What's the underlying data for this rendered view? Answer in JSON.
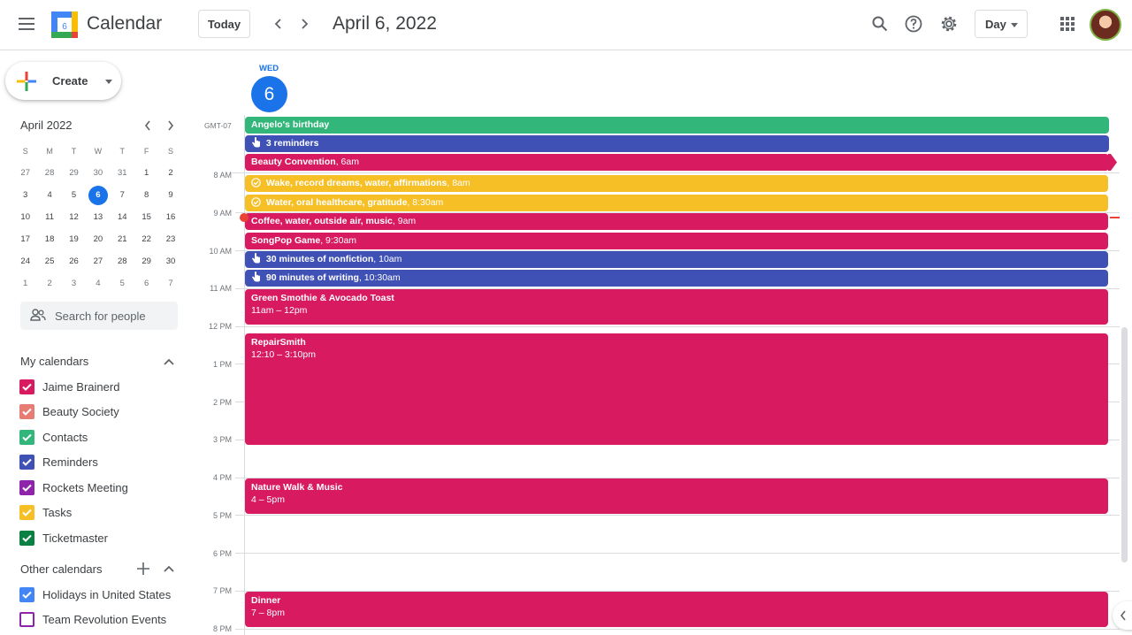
{
  "header": {
    "app_title": "Calendar",
    "logo_day": "6",
    "today_label": "Today",
    "date_title": "April 6, 2022",
    "view_label": "Day"
  },
  "sidebar": {
    "create_label": "Create",
    "mini_month": "April 2022",
    "mini_dow": [
      "S",
      "M",
      "T",
      "W",
      "T",
      "F",
      "S"
    ],
    "mini_weeks": [
      [
        "27",
        "28",
        "29",
        "30",
        "31",
        "1",
        "2"
      ],
      [
        "3",
        "4",
        "5",
        "6",
        "7",
        "8",
        "9"
      ],
      [
        "10",
        "11",
        "12",
        "13",
        "14",
        "15",
        "16"
      ],
      [
        "17",
        "18",
        "19",
        "20",
        "21",
        "22",
        "23"
      ],
      [
        "24",
        "25",
        "26",
        "27",
        "28",
        "29",
        "30"
      ],
      [
        "1",
        "2",
        "3",
        "4",
        "5",
        "6",
        "7"
      ]
    ],
    "search_placeholder": "Search for people",
    "my_calendars_title": "My calendars",
    "my_calendars": [
      {
        "label": "Jaime Brainerd",
        "color": "#d81b60"
      },
      {
        "label": "Beauty Society",
        "color": "#e67c73"
      },
      {
        "label": "Contacts",
        "color": "#33b679"
      },
      {
        "label": "Reminders",
        "color": "#3f51b5"
      },
      {
        "label": "Rockets Meeting",
        "color": "#8e24aa"
      },
      {
        "label": "Tasks",
        "color": "#f6bf26"
      },
      {
        "label": "Ticketmaster",
        "color": "#0b8043"
      }
    ],
    "other_calendars_title": "Other calendars",
    "other_calendars": [
      {
        "label": "Holidays in United States",
        "color": "#4285f4",
        "checked": true
      },
      {
        "label": "Team Revolution Events",
        "color": "#8e24aa",
        "checked": false
      }
    ]
  },
  "day": {
    "dow": "WED",
    "num": "6",
    "timezone": "GMT-07",
    "hours": [
      "8 AM",
      "9 AM",
      "10 AM",
      "11 AM",
      "12 PM",
      "1 PM",
      "2 PM",
      "3 PM",
      "4 PM",
      "5 PM",
      "6 PM",
      "7 PM",
      "8 PM"
    ]
  },
  "allday_events": [
    {
      "title": "Angelo's birthday",
      "time": "",
      "color": "#33b679",
      "icon": ""
    },
    {
      "title": "3 reminders",
      "time": "",
      "color": "#3f51b5",
      "icon": "reminder-icon"
    },
    {
      "title": "Beauty Convention",
      "time": ", 6am",
      "color": "#d81b60",
      "icon": ""
    }
  ],
  "events": [
    {
      "title": "Wake, record dreams, water, affirmations",
      "time": ", 8am",
      "color": "#f6bf26",
      "icon": "task-check-icon"
    },
    {
      "title": "Water, oral healthcare, gratitude",
      "time": ", 8:30am",
      "color": "#f6bf26",
      "icon": "task-check-icon"
    },
    {
      "title": "Coffee, water, outside air, music",
      "time": ", 9am",
      "color": "#d81b60",
      "icon": ""
    },
    {
      "title": "SongPop Game",
      "time": ", 9:30am",
      "color": "#d81b60",
      "icon": ""
    },
    {
      "title": "30 minutes of nonfiction",
      "time": ", 10am",
      "color": "#3f51b5",
      "icon": "reminder-icon"
    },
    {
      "title": "90 minutes of writing",
      "time": ", 10:30am",
      "color": "#3f51b5",
      "icon": "reminder-icon"
    },
    {
      "title": "Green Smothie & Avocado Toast",
      "time": "11am – 12pm",
      "color": "#d81b60",
      "icon": ""
    },
    {
      "title": "RepairSmith",
      "time": "12:10 – 3:10pm",
      "color": "#d81b60",
      "icon": ""
    },
    {
      "title": "Nature Walk & Music",
      "time": "4 – 5pm",
      "color": "#d81b60",
      "icon": ""
    },
    {
      "title": "Dinner",
      "time": "7 – 8pm",
      "color": "#d81b60",
      "icon": ""
    }
  ],
  "colors": {
    "accent": "#1a73e8",
    "now_indicator": "#ea4335"
  }
}
